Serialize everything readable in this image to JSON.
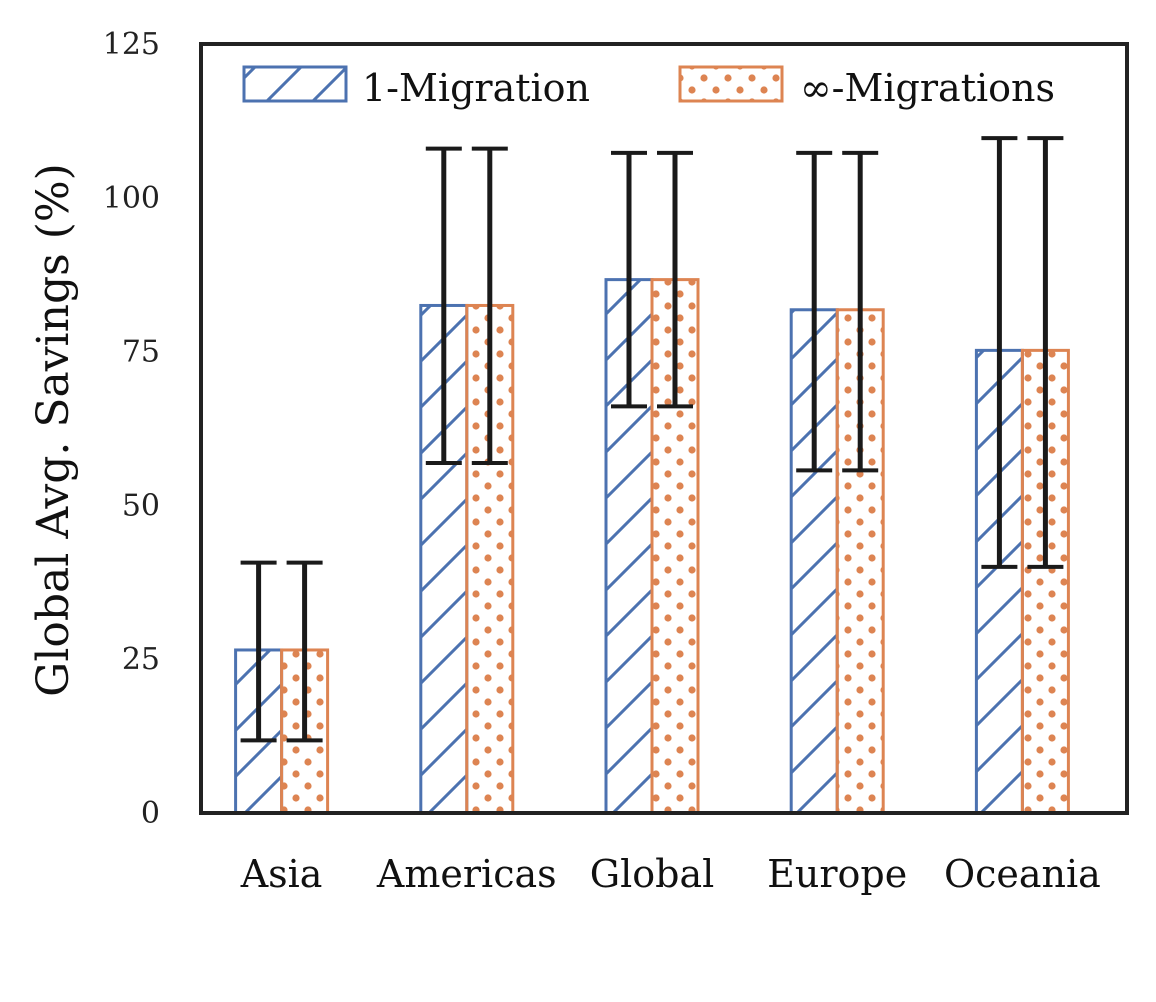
{
  "chart_data": {
    "type": "bar",
    "categories": [
      "Asia",
      "Americas",
      "Global",
      "Europe",
      "Oceania"
    ],
    "series": [
      {
        "name": "1-Migration",
        "values": [
          26.5,
          82.5,
          86.7,
          81.8,
          75.2
        ],
        "err_low": [
          11.8,
          56.9,
          66.1,
          55.7,
          40.0
        ],
        "err_high": [
          40.7,
          108.0,
          107.3,
          107.3,
          109.7
        ],
        "color": "#4C72B0",
        "pattern": "hatch"
      },
      {
        "name": "∞-Migrations",
        "values": [
          26.5,
          82.5,
          86.7,
          81.8,
          75.2
        ],
        "err_low": [
          11.8,
          56.9,
          66.1,
          55.7,
          40.0
        ],
        "err_high": [
          40.7,
          108.0,
          107.3,
          107.3,
          109.7
        ],
        "color": "#DD8452",
        "pattern": "dots"
      }
    ],
    "title": "",
    "xlabel": "",
    "ylabel": "Global Avg. Savings (%)",
    "ylim": [
      0,
      125
    ],
    "yticks": [
      "0",
      "25",
      "50",
      "75",
      "100",
      "125"
    ],
    "grid": false,
    "legend": "top"
  }
}
